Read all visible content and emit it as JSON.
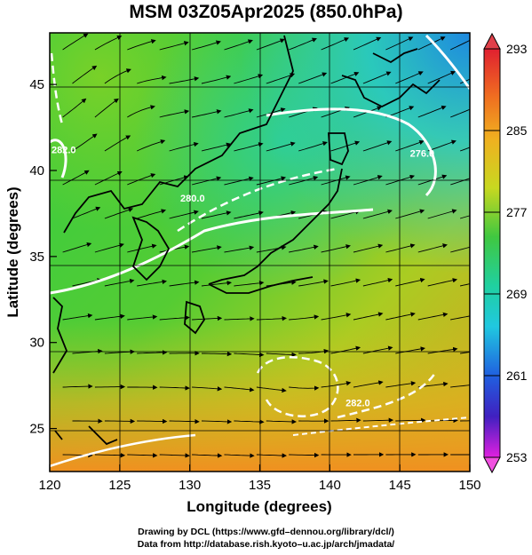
{
  "title": "MSM 03Z05Apr2025 (850.0hPa)",
  "axes": {
    "xlabel": "Longitude (degrees)",
    "ylabel": "Latitude  (degrees)",
    "xlim": [
      120,
      150
    ],
    "ylim": [
      22.5,
      48
    ],
    "xticks": [
      120,
      125,
      130,
      135,
      140,
      145,
      150
    ],
    "yticks": [
      25,
      30,
      35,
      40,
      45
    ]
  },
  "colorbar": {
    "min": 253,
    "max": 293,
    "labels": [
      "293",
      "285",
      "277",
      "269",
      "261",
      "253"
    ],
    "label_values": [
      293,
      285,
      277,
      269,
      261,
      253
    ]
  },
  "contour_labels": [
    {
      "text": "282.0",
      "lon": 121.0,
      "lat": 41.0
    },
    {
      "text": "280.0",
      "lon": 130.2,
      "lat": 38.2
    },
    {
      "text": "276.0",
      "lon": 146.6,
      "lat": 40.8
    },
    {
      "text": "282.0",
      "lon": 142.0,
      "lat": 26.3
    }
  ],
  "credits": {
    "line1": "Drawing by DCL (https://www.gfd–dennou.org/library/dcl/)",
    "line2": "Data from http://database.rish.kyoto–u.ac.jp/arch/jmadata/"
  },
  "colors": {
    "cold": "#1e78dc",
    "cyan": "#18d2d2",
    "green": "#3cc83c",
    "yellow": "#d2d21e",
    "orange": "#f0a020",
    "warm_red": "#e0202a",
    "magenta": "#e020e0",
    "contour": "#ffffff",
    "coast": "#000000"
  }
}
